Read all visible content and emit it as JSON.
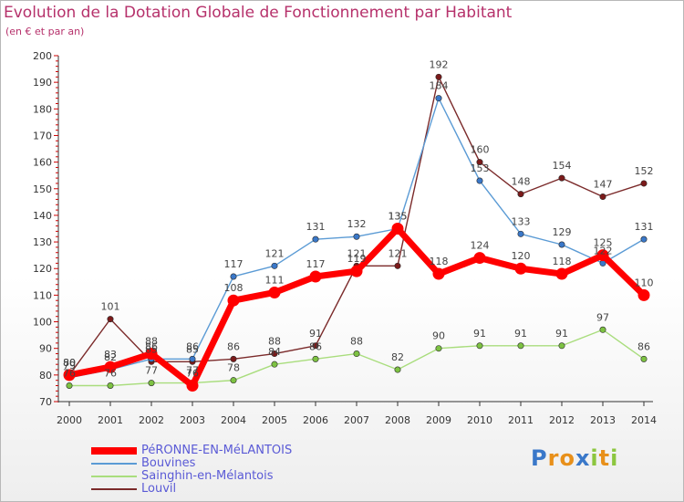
{
  "title": "Evolution de la Dotation Globale de Fonctionnement par Habitant",
  "subtitle": "(en € et par an)",
  "logo": {
    "letters": [
      "P",
      "r",
      "o",
      "x",
      "i",
      "t",
      "i"
    ],
    "colors": [
      "#3a78c9",
      "#e8901a",
      "#e8901a",
      "#3a78c9",
      "#8cc63f",
      "#e8901a",
      "#8cc63f"
    ]
  },
  "chart_data": {
    "type": "line",
    "title": "Evolution de la Dotation Globale de Fonctionnement par Habitant",
    "ylabel": "(en € et par an)",
    "xlabel": "",
    "x": [
      "2000",
      "2001",
      "2002",
      "2003",
      "2004",
      "2005",
      "2006",
      "2007",
      "2008",
      "2009",
      "2010",
      "2011",
      "2012",
      "2013",
      "2014"
    ],
    "ylim": [
      70,
      200
    ],
    "yticks": [
      "70",
      "80",
      "90",
      "100",
      "110",
      "120",
      "130",
      "140",
      "150",
      "160",
      "170",
      "180",
      "190",
      "200"
    ],
    "grid": false,
    "legend_position": "bottom-left",
    "series": [
      {
        "name": "PéRONNE-EN-MéLANTOIS",
        "color": "#ff0000",
        "marker": "#ff0000",
        "values": [
          80,
          83,
          88,
          76,
          108,
          111,
          117,
          119,
          135,
          118,
          124,
          120,
          118,
          125,
          110
        ],
        "labels": [
          "80",
          "83",
          "88",
          "76",
          "108",
          "111",
          "117",
          "119",
          "135",
          "118",
          "124",
          "120",
          "118",
          "125",
          "110"
        ]
      },
      {
        "name": "Bouvines",
        "color": "#5b9bd5",
        "marker": "#3a78c9",
        "values": [
          79,
          82,
          86,
          86,
          117,
          121,
          131,
          132,
          135,
          184,
          153,
          133,
          129,
          122,
          131
        ],
        "labels": [
          "79",
          "82",
          "86",
          "86",
          "117",
          "121",
          "131",
          "132",
          "135",
          "184",
          "153",
          "133",
          "129",
          "122",
          "131"
        ]
      },
      {
        "name": "Sainghin-en-Mélantois",
        "color": "#a9dd7d",
        "marker": "#7dc242",
        "values": [
          76,
          76,
          77,
          77,
          78,
          84,
          86,
          88,
          82,
          90,
          91,
          91,
          91,
          97,
          86
        ],
        "labels": [
          "76",
          "76",
          "77",
          "77",
          "78",
          "84",
          "86",
          "88",
          "82",
          "90",
          "91",
          "91",
          "91",
          "97",
          "86"
        ]
      },
      {
        "name": "Louvil",
        "color": "#7b2a2a",
        "marker": "#7b1a1a",
        "values": [
          80,
          101,
          85,
          85,
          86,
          88,
          91,
          121,
          121,
          192,
          160,
          148,
          154,
          147,
          152
        ],
        "labels": [
          "80",
          "101",
          "85",
          "85",
          "86",
          "88",
          "91",
          "121",
          "121",
          "192",
          "160",
          "148",
          "154",
          "147",
          "152"
        ]
      }
    ]
  }
}
